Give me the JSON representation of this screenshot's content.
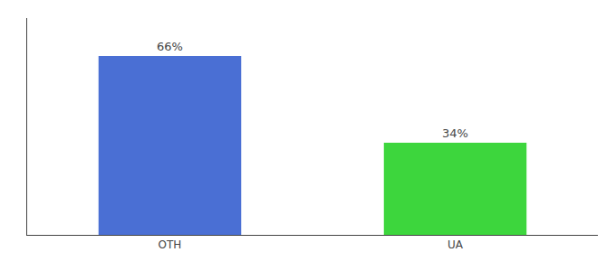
{
  "chart_data": {
    "type": "bar",
    "categories": [
      "OTH",
      "UA"
    ],
    "values": [
      66,
      34
    ],
    "value_labels": [
      "66%",
      "34%"
    ],
    "data_labels": true,
    "colors": [
      "#4A6FD4",
      "#3DD63D"
    ],
    "ylim": [
      0,
      80
    ],
    "tick_labels": "x",
    "grid": false
  }
}
